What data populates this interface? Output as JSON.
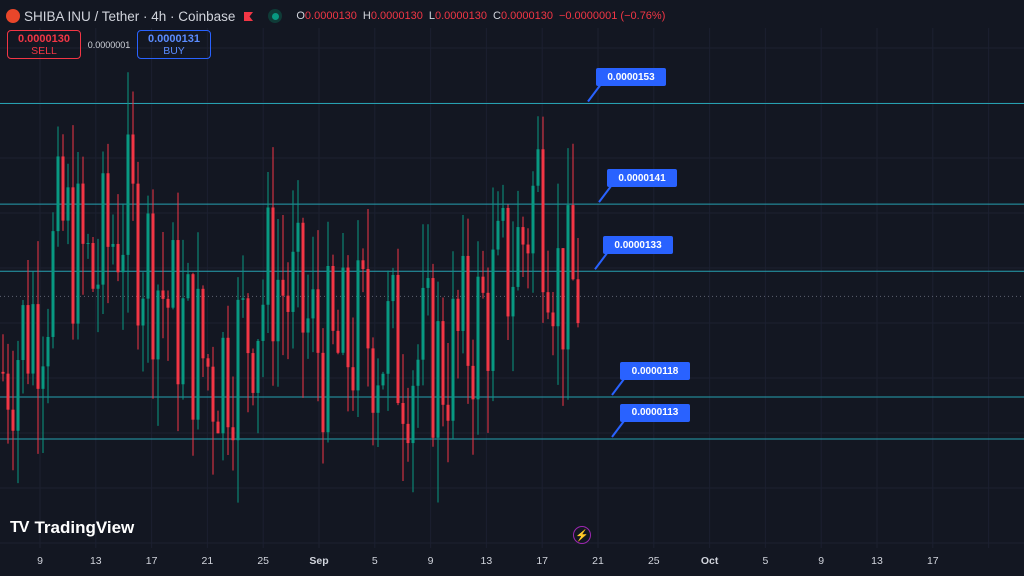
{
  "header": {
    "title": "SHIBA INU / Tether · 4h · Coinbase",
    "ohlc": [
      {
        "k": "O",
        "v": "0.0000130"
      },
      {
        "k": "H",
        "v": "0.0000130"
      },
      {
        "k": "L",
        "v": "0.0000130"
      },
      {
        "k": "C",
        "v": "0.0000130"
      },
      {
        "k": "",
        "v": "−0.0000001 (−0.76%)"
      }
    ]
  },
  "trade": {
    "sell_price": "0.0000130",
    "sell_label": "SELL",
    "spread": "0.0000001",
    "buy_price": "0.0000131",
    "buy_label": "BUY"
  },
  "colors": {
    "up": "#089981",
    "down": "#f23645",
    "level": "#26a0b0",
    "alert": "#2962ff"
  },
  "branding": {
    "logo_text": "TradingView"
  },
  "chart_data": {
    "type": "candlestick",
    "ylim": [
      1e-05,
      1.62e-05
    ],
    "x_ticks": [
      "9",
      "13",
      "17",
      "21",
      "25",
      "Sep",
      "5",
      "9",
      "13",
      "17",
      "21",
      "25",
      "Oct",
      "5",
      "9",
      "13",
      "17"
    ],
    "major_ticks": [
      "Sep",
      "Oct"
    ],
    "levels": [
      "0.0000153",
      "0.0000141",
      "0.0000133",
      "0.0000118",
      "0.0000113"
    ],
    "last_price": 1.3e-05,
    "candle_count": 116,
    "trend": [
      [
        0,
        1.21e-05
      ],
      [
        8,
        1.3e-05
      ],
      [
        12,
        1.38e-05
      ],
      [
        18,
        1.32e-05
      ],
      [
        24,
        1.4e-05
      ],
      [
        28,
        1.36e-05
      ],
      [
        34,
        1.28e-05
      ],
      [
        42,
        1.21e-05
      ],
      [
        48,
        1.25e-05
      ],
      [
        54,
        1.33e-05
      ],
      [
        60,
        1.27e-05
      ],
      [
        66,
        1.22e-05
      ],
      [
        72,
        1.26e-05
      ],
      [
        80,
        1.23e-05
      ],
      [
        88,
        1.22e-05
      ],
      [
        94,
        1.26e-05
      ],
      [
        100,
        1.32e-05
      ],
      [
        104,
        1.37e-05
      ],
      [
        107,
        1.44e-05
      ],
      [
        109,
        1.39e-05
      ],
      [
        111,
        1.32e-05
      ],
      [
        113,
        1.3e-05
      ],
      [
        115,
        1.31e-05
      ]
    ]
  }
}
